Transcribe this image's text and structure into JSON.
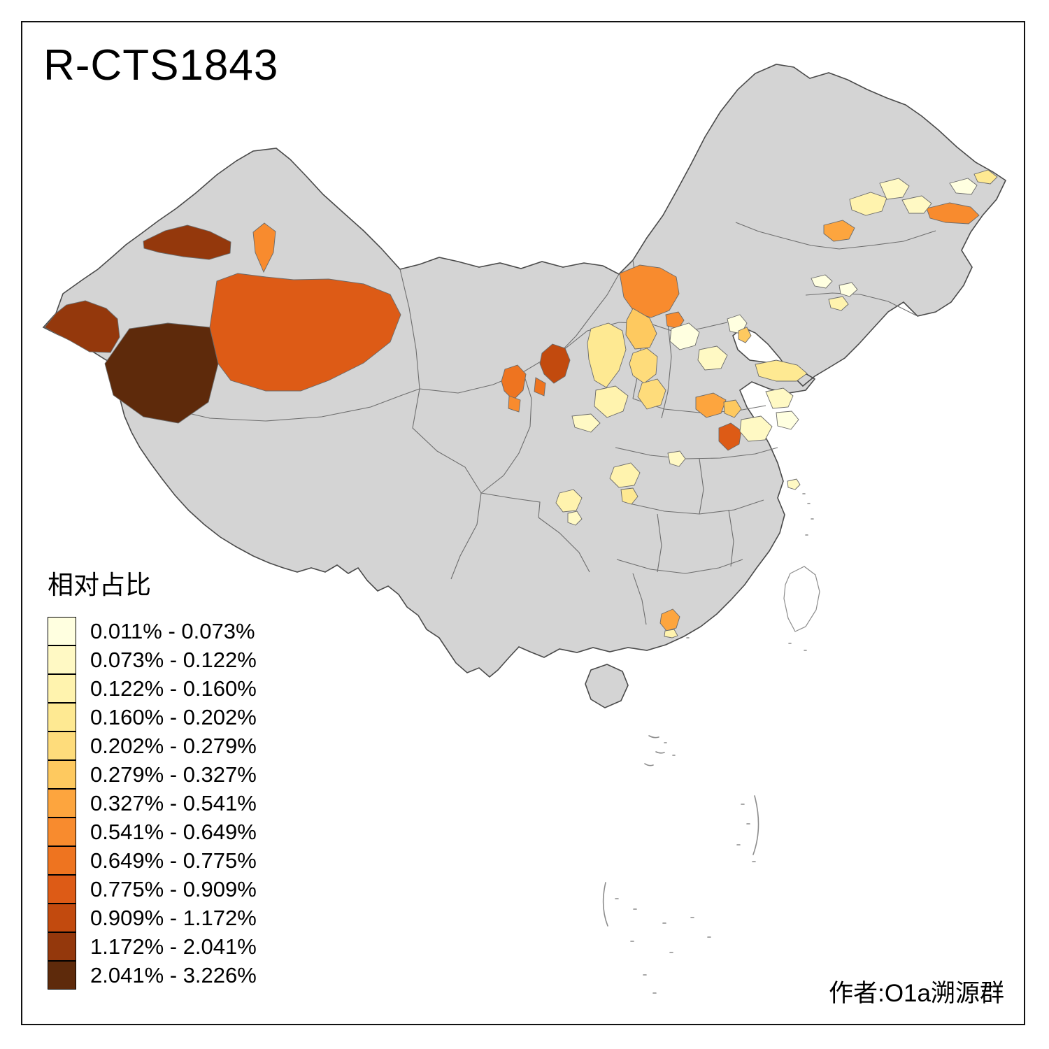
{
  "title": "R-CTS1843",
  "author": "作者:O1a溯源群",
  "legend": {
    "title": "相对占比",
    "items": [
      {
        "label": "0.011% - 0.073%",
        "color": "#FFFFE0"
      },
      {
        "label": "0.073% - 0.122%",
        "color": "#FFF9C4"
      },
      {
        "label": "0.122% - 0.160%",
        "color": "#FFF3AE"
      },
      {
        "label": "0.160% - 0.202%",
        "color": "#FEE992"
      },
      {
        "label": "0.202% - 0.279%",
        "color": "#FEDC7B"
      },
      {
        "label": "0.279% - 0.327%",
        "color": "#FEC95F"
      },
      {
        "label": "0.327% - 0.541%",
        "color": "#FDA53E"
      },
      {
        "label": "0.541% - 0.649%",
        "color": "#F88B2E"
      },
      {
        "label": "0.649% - 0.775%",
        "color": "#EE7420"
      },
      {
        "label": "0.775% - 0.909%",
        "color": "#DD5B16"
      },
      {
        "label": "0.909% - 1.172%",
        "color": "#C24A0E"
      },
      {
        "label": "1.172% - 2.041%",
        "color": "#94380C"
      },
      {
        "label": "2.041% - 3.226%",
        "color": "#5E2A0B"
      }
    ]
  },
  "palette": {
    "c0": "#FFFFE0",
    "c1": "#FFF9C4",
    "c2": "#FFF3AE",
    "c3": "#FEE992",
    "c4": "#FEDC7B",
    "c5": "#FEC95F",
    "c6": "#FDA53E",
    "c7": "#F88B2E",
    "c8": "#EE7420",
    "c9": "#DD5B16",
    "c10": "#C24A0E",
    "c11": "#94380C",
    "c12": "#5E2A0B",
    "land": "#D4D4D4",
    "island": "#D4D4D4"
  }
}
